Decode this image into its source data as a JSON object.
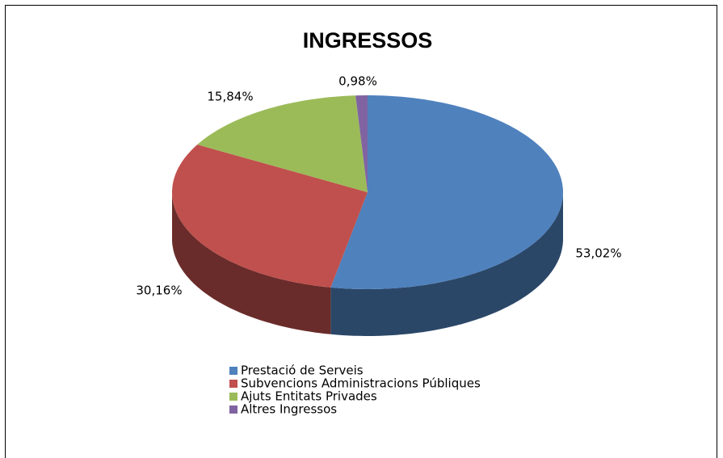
{
  "chart_data": {
    "type": "pie",
    "title": "INGRESSOS",
    "categories": [
      "Prestació de Serveis",
      "Subvencions Administracions Públiques",
      "Ajuts Entitats Privades",
      "Altres Ingressos"
    ],
    "values": [
      53.02,
      30.16,
      15.84,
      0.98
    ],
    "value_labels": [
      "53,02%",
      "30,16%",
      "15,84%",
      "0,98%"
    ],
    "colors": [
      "#4f81bd",
      "#c0504d",
      "#9bbb59",
      "#8064a2"
    ],
    "legend": "bottom"
  }
}
